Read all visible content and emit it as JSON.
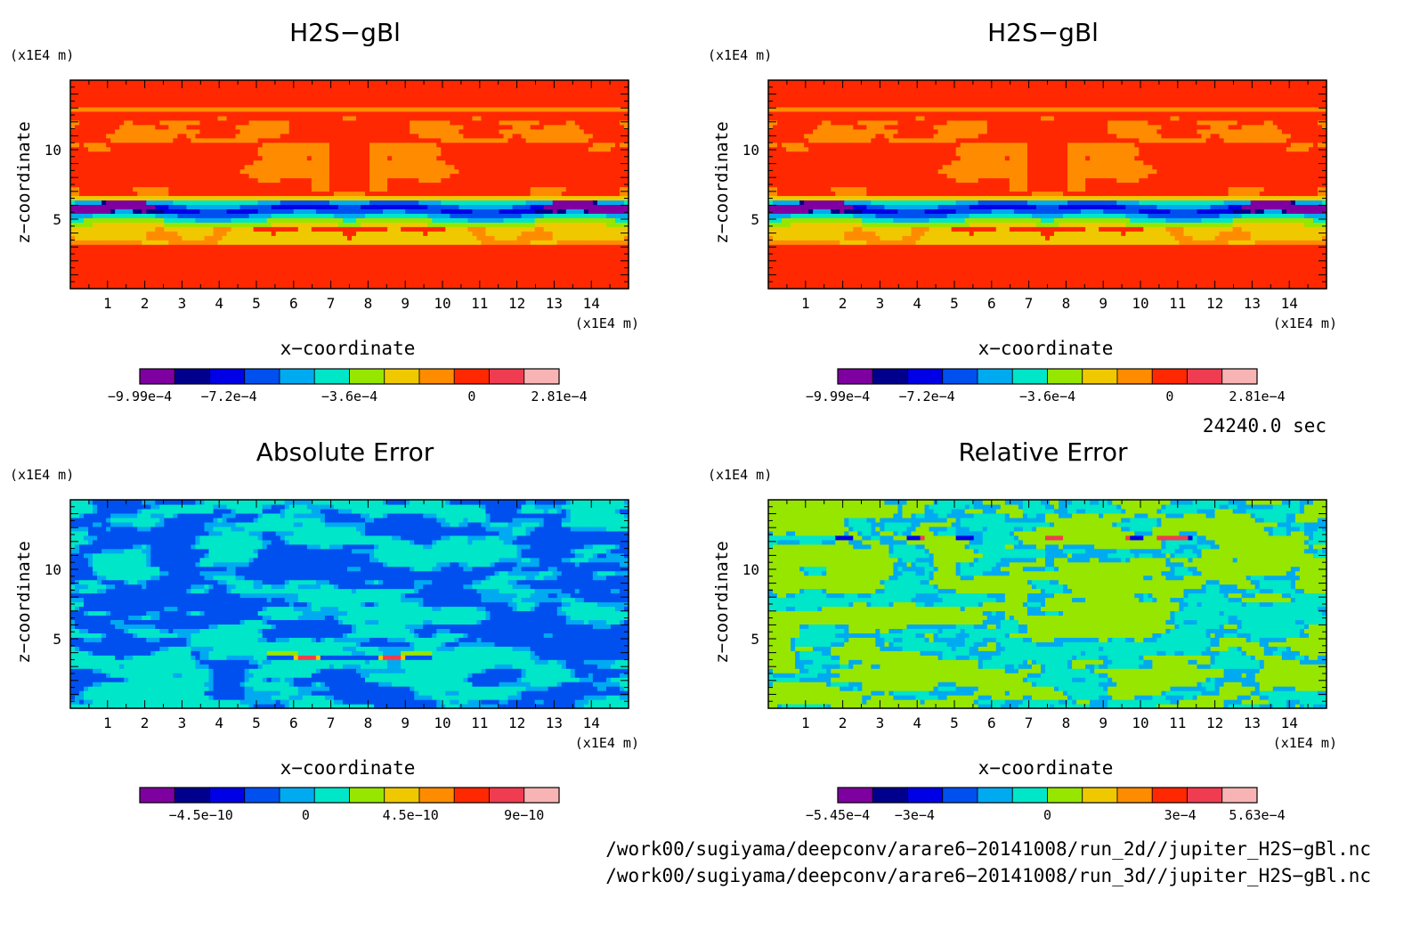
{
  "chart_data": [
    {
      "type": "heatmap",
      "title": "H2S−gBl",
      "xlabel": "x−coordinate",
      "ylabel": "z−coordinate",
      "x_unit": "(x1E4 m)",
      "y_unit": "(x1E4 m)",
      "xlim": [
        0,
        15
      ],
      "ylim": [
        0,
        15
      ],
      "xticks": [
        "1",
        "2",
        "3",
        "4",
        "5",
        "6",
        "7",
        "8",
        "9",
        "10",
        "11",
        "12",
        "13",
        "14"
      ],
      "yticks": [
        "5",
        "10"
      ],
      "pattern": "field",
      "colorbar": {
        "colors": [
          "#7f00a0",
          "#00008c",
          "#0000e6",
          "#0050f0",
          "#00aaf0",
          "#00e6c8",
          "#96e600",
          "#f0c800",
          "#ff8c00",
          "#ff2800",
          "#f03c50",
          "#f8b4b4"
        ],
        "labels": [
          "−9.99e−4",
          "−7.2e−4",
          "−3.6e−4",
          "0",
          "2.81e−4"
        ]
      }
    },
    {
      "type": "heatmap",
      "title": "H2S−gBl",
      "xlabel": "x−coordinate",
      "ylabel": "z−coordinate",
      "x_unit": "(x1E4 m)",
      "y_unit": "(x1E4 m)",
      "xlim": [
        0,
        15
      ],
      "ylim": [
        0,
        15
      ],
      "xticks": [
        "1",
        "2",
        "3",
        "4",
        "5",
        "6",
        "7",
        "8",
        "9",
        "10",
        "11",
        "12",
        "13",
        "14"
      ],
      "yticks": [
        "5",
        "10"
      ],
      "pattern": "field",
      "colorbar": {
        "colors": [
          "#7f00a0",
          "#00008c",
          "#0000e6",
          "#0050f0",
          "#00aaf0",
          "#00e6c8",
          "#96e600",
          "#f0c800",
          "#ff8c00",
          "#ff2800",
          "#f03c50",
          "#f8b4b4"
        ],
        "labels": [
          "−9.99e−4",
          "−7.2e−4",
          "−3.6e−4",
          "0",
          "2.81e−4"
        ]
      }
    },
    {
      "type": "heatmap",
      "title": "Absolute Error",
      "xlabel": "x−coordinate",
      "ylabel": "z−coordinate",
      "x_unit": "(x1E4 m)",
      "y_unit": "(x1E4 m)",
      "xlim": [
        0,
        15
      ],
      "ylim": [
        0,
        15
      ],
      "xticks": [
        "1",
        "2",
        "3",
        "4",
        "5",
        "6",
        "7",
        "8",
        "9",
        "10",
        "11",
        "12",
        "13",
        "14"
      ],
      "yticks": [
        "5",
        "10"
      ],
      "pattern": "abs",
      "colorbar": {
        "colors": [
          "#7f00a0",
          "#00008c",
          "#0000e6",
          "#0050f0",
          "#00aaf0",
          "#00e6c8",
          "#96e600",
          "#f0c800",
          "#ff8c00",
          "#ff2800",
          "#f03c50",
          "#f8b4b4"
        ],
        "labels": [
          "−4.5e−10",
          "0",
          "4.5e−10",
          "9e−10"
        ]
      }
    },
    {
      "type": "heatmap",
      "title": "Relative Error",
      "xlabel": "x−coordinate",
      "ylabel": "z−coordinate",
      "x_unit": "(x1E4 m)",
      "y_unit": "(x1E4 m)",
      "xlim": [
        0,
        15
      ],
      "ylim": [
        0,
        15
      ],
      "xticks": [
        "1",
        "2",
        "3",
        "4",
        "5",
        "6",
        "7",
        "8",
        "9",
        "10",
        "11",
        "12",
        "13",
        "14"
      ],
      "yticks": [
        "5",
        "10"
      ],
      "pattern": "rel",
      "colorbar": {
        "colors": [
          "#7f00a0",
          "#00008c",
          "#0000e6",
          "#0050f0",
          "#00aaf0",
          "#00e6c8",
          "#96e600",
          "#f0c800",
          "#ff8c00",
          "#ff2800",
          "#f03c50",
          "#f8b4b4"
        ],
        "labels": [
          "−5.45e−4",
          "−3e−4",
          "0",
          "3e−4",
          "5.63e−4"
        ]
      }
    }
  ],
  "time_label": "24240.0 sec",
  "files": [
    "/work00/sugiyama/deepconv/arare6−20141008/run_2d//jupiter_H2S−gBl.nc",
    "/work00/sugiyama/deepconv/arare6−20141008/run_3d//jupiter_H2S−gBl.nc"
  ]
}
